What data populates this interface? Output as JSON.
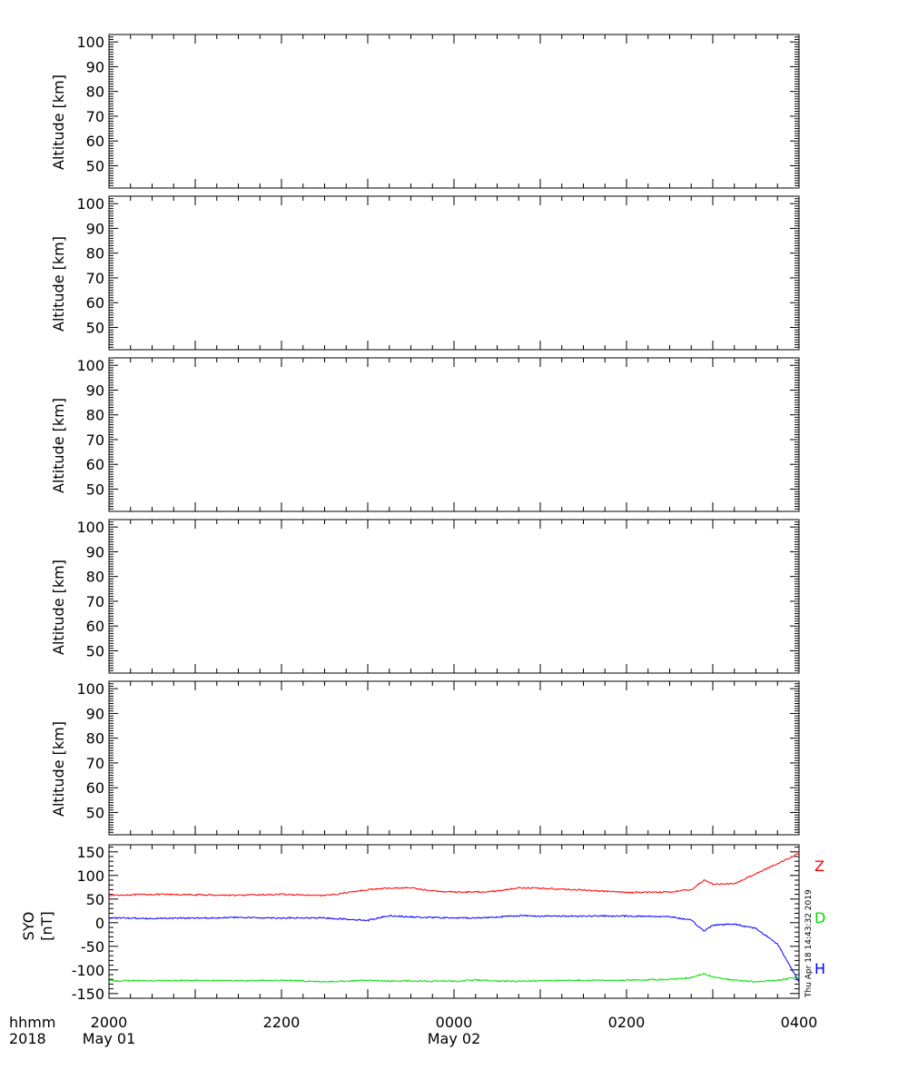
{
  "chart_data": [
    {
      "type": "line",
      "title": "",
      "ylabel": "Altitude [km]",
      "ylim": [
        41,
        103
      ],
      "yticks": [
        "50",
        "60",
        "70",
        "80",
        "90",
        "100"
      ],
      "series": []
    },
    {
      "type": "line",
      "title": "",
      "ylabel": "Altitude [km]",
      "ylim": [
        41,
        103
      ],
      "yticks": [
        "50",
        "60",
        "70",
        "80",
        "90",
        "100"
      ],
      "series": []
    },
    {
      "type": "line",
      "title": "",
      "ylabel": "Altitude [km]",
      "ylim": [
        41,
        103
      ],
      "yticks": [
        "50",
        "60",
        "70",
        "80",
        "90",
        "100"
      ],
      "series": []
    },
    {
      "type": "line",
      "title": "",
      "ylabel": "Altitude [km]",
      "ylim": [
        41,
        103
      ],
      "yticks": [
        "50",
        "60",
        "70",
        "80",
        "90",
        "100"
      ],
      "series": []
    },
    {
      "type": "line",
      "title": "",
      "ylabel": "Altitude [km]",
      "ylim": [
        41,
        103
      ],
      "yticks": [
        "50",
        "60",
        "70",
        "80",
        "90",
        "100"
      ],
      "series": []
    },
    {
      "type": "line",
      "title": "",
      "ylabel_line1": "SYO",
      "ylabel_line2": "[nT]",
      "ylim": [
        -160,
        165
      ],
      "yticks": [
        "-150",
        "-100",
        "-50",
        "0",
        "50",
        "100",
        "150"
      ],
      "x_hours": [
        0,
        0.5,
        1,
        1.5,
        2,
        2.5,
        3,
        3.25,
        3.5,
        3.75,
        4,
        4.25,
        4.5,
        4.75,
        5,
        5.5,
        6,
        6.5,
        6.75,
        6.9,
        7,
        7.25,
        7.5,
        7.75,
        8
      ],
      "series": [
        {
          "name": "Z",
          "color": "#ff0000",
          "values": [
            58,
            60,
            59,
            58,
            60,
            57,
            70,
            73,
            74,
            67,
            65,
            65,
            67,
            74,
            73,
            69,
            64,
            65,
            70,
            90,
            82,
            82,
            104,
            125,
            147
          ]
        },
        {
          "name": "D",
          "color": "#00dd00",
          "values": [
            -123,
            -123,
            -122,
            -123,
            -122,
            -125,
            -122,
            -124,
            -123,
            -124,
            -124,
            -121,
            -124,
            -124,
            -123,
            -122,
            -122,
            -120,
            -116,
            -108,
            -115,
            -122,
            -125,
            -122,
            -115
          ]
        },
        {
          "name": "H",
          "color": "#0000ff",
          "values": [
            10,
            9,
            10,
            11,
            10,
            10,
            5,
            15,
            12,
            11,
            10,
            10,
            12,
            15,
            14,
            14,
            14,
            13,
            5,
            -18,
            -5,
            -3,
            -12,
            -45,
            -125
          ]
        }
      ]
    }
  ],
  "xaxis": {
    "header_line1": "hhmm",
    "header_line2": "2018",
    "xlim_hours": [
      0,
      8
    ],
    "ticks": [
      {
        "label": "2000",
        "date": "May 01"
      },
      {
        "label": "2200",
        "date": ""
      },
      {
        "label": "0000",
        "date": "May 02"
      },
      {
        "label": "0200",
        "date": ""
      },
      {
        "label": "0400",
        "date": ""
      }
    ]
  },
  "timestamp": "Thu Apr 18 14:43:32 2019"
}
